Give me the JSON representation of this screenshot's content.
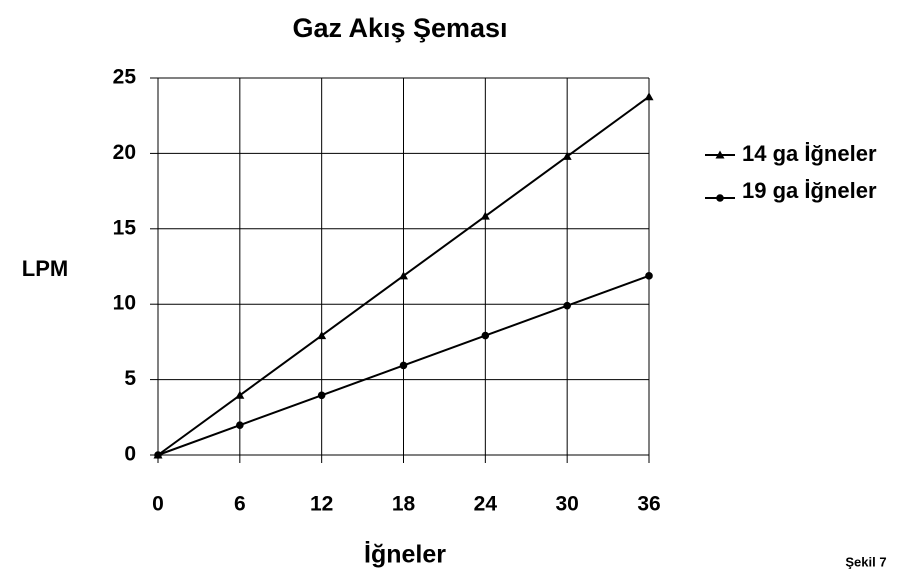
{
  "chart_data": {
    "type": "line",
    "title": "Gaz Akış Şeması",
    "x_label": "İğneler",
    "y_label": "LPM",
    "annotations": [
      "Şekil 7"
    ],
    "x": [
      0,
      6,
      12,
      18,
      24,
      30,
      36
    ],
    "series": [
      {
        "name": "14 ga İğneler",
        "color": "#000000",
        "marker": "triangle",
        "values": [
          0,
          3.96,
          7.92,
          11.88,
          15.84,
          19.8,
          23.76
        ]
      },
      {
        "name": "19 ga İğneler",
        "color": "#000000",
        "marker": "circle",
        "values": [
          0,
          1.98,
          3.96,
          5.94,
          7.92,
          9.9,
          11.88
        ]
      }
    ],
    "xlim": [
      0,
      36
    ],
    "xticks": [
      0,
      6,
      12,
      18,
      24,
      30,
      36
    ],
    "ylim": [
      0,
      25
    ],
    "yticks": [
      0,
      5,
      10,
      15,
      20,
      25
    ],
    "grid": true,
    "legend": "right"
  }
}
